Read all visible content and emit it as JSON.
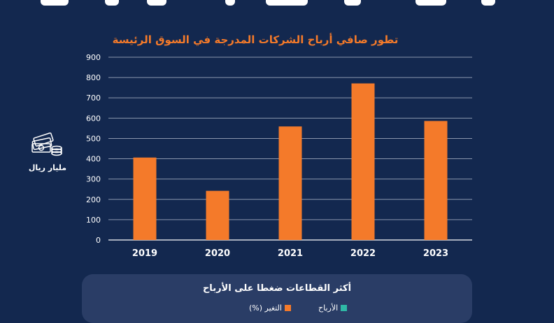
{
  "chart_data": {
    "type": "bar",
    "title": "تطور صافي أرباح الشركات المدرجة في السوق الرئيسة",
    "categories": [
      "2019",
      "2020",
      "2021",
      "2022",
      "2023"
    ],
    "values": [
      406,
      242,
      559,
      771,
      586
    ],
    "ylabel": "مليار ريال",
    "ylim": [
      0,
      900
    ],
    "yticks": [
      0,
      100,
      200,
      300,
      400,
      500,
      600,
      700,
      800,
      900
    ],
    "grid": true,
    "bar_color": "#f47a2a"
  },
  "unit": {
    "label": "مليار ريال",
    "icon": "money-stack-icon"
  },
  "panel": {
    "title": "أكثر القطاعات ضغطا على الأرباح",
    "legend": [
      {
        "label": "التغير (%)",
        "color": "#f47a2a"
      },
      {
        "label": "الأرباح",
        "color": "#2fb9a6"
      }
    ]
  },
  "colors": {
    "background": "#13284f",
    "accent": "#f47a2a",
    "panel": "#2a3d66",
    "gridline": "#8a96ad"
  }
}
